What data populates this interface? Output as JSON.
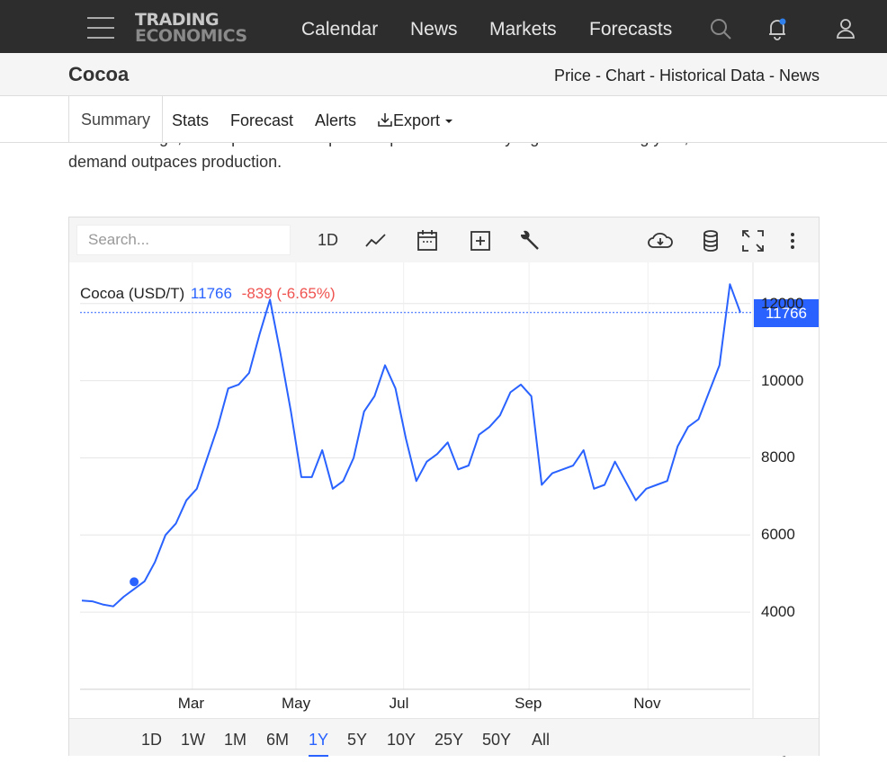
{
  "nav": {
    "logo_line1": "TRADING",
    "logo_line2": "ECONOMICS",
    "links": [
      "Calendar",
      "News",
      "Markets",
      "Forecasts"
    ]
  },
  "titlebar": {
    "title": "Cocoa",
    "crumbs": "Price - Chart - Historical Data - News"
  },
  "subtabs": {
    "items": [
      "Summary",
      "Stats",
      "Forecast",
      "Alerts",
      "Export"
    ],
    "active": "Summary"
  },
  "article": {
    "line1": "climate change, are expected to keep cocoa prices historically high in the coming year, as",
    "line2": "demand outpaces production."
  },
  "toolbar": {
    "search_placeholder": "Search...",
    "interval": "1D",
    "icons": [
      "line-chart-icon",
      "calendar-icon",
      "plus-box-icon",
      "wrench-icon",
      "download-cloud-icon",
      "database-icon",
      "fullscreen-icon",
      "more-icon"
    ]
  },
  "legend": {
    "name": "Cocoa (USD/T)",
    "price": "11766",
    "change": "-839 (-6.65%)"
  },
  "price_tag": "11766",
  "colors": {
    "line": "#2962ff",
    "change": "#ef5350",
    "nav_bg": "#2d2d2d"
  },
  "ranges": {
    "items": [
      "1D",
      "1W",
      "1M",
      "6M",
      "1Y",
      "5Y",
      "10Y",
      "25Y",
      "50Y",
      "All"
    ],
    "active": "1Y"
  },
  "chart_data": {
    "type": "line",
    "series": [
      {
        "name": "Cocoa (USD/T)",
        "values": [
          4300,
          4280,
          4200,
          4150,
          4400,
          4600,
          4800,
          5300,
          6000,
          6300,
          6900,
          7200,
          8000,
          8800,
          9800,
          9900,
          10200,
          11200,
          12100,
          10700,
          9200,
          7500,
          7500,
          8200,
          7200,
          7400,
          8000,
          9200,
          9600,
          10400,
          9800,
          8500,
          7400,
          7900,
          8100,
          8400,
          7700,
          7800,
          8600,
          8800,
          9100,
          9700,
          9900,
          9600,
          7300,
          7600,
          7700,
          7800,
          8200,
          7200,
          7300,
          7900,
          7400,
          6900,
          7200,
          7300,
          7400,
          8300,
          8800,
          9000,
          9700,
          10400,
          12500,
          11766
        ]
      }
    ],
    "x_ticks": [
      "Mar",
      "May",
      "Jul",
      "Sep",
      "Nov"
    ],
    "y_ticks": [
      4000,
      6000,
      8000,
      10000,
      12000
    ],
    "ylim": [
      2000,
      12600
    ],
    "last_value": 11766,
    "grid": true,
    "legend": "top-left"
  }
}
